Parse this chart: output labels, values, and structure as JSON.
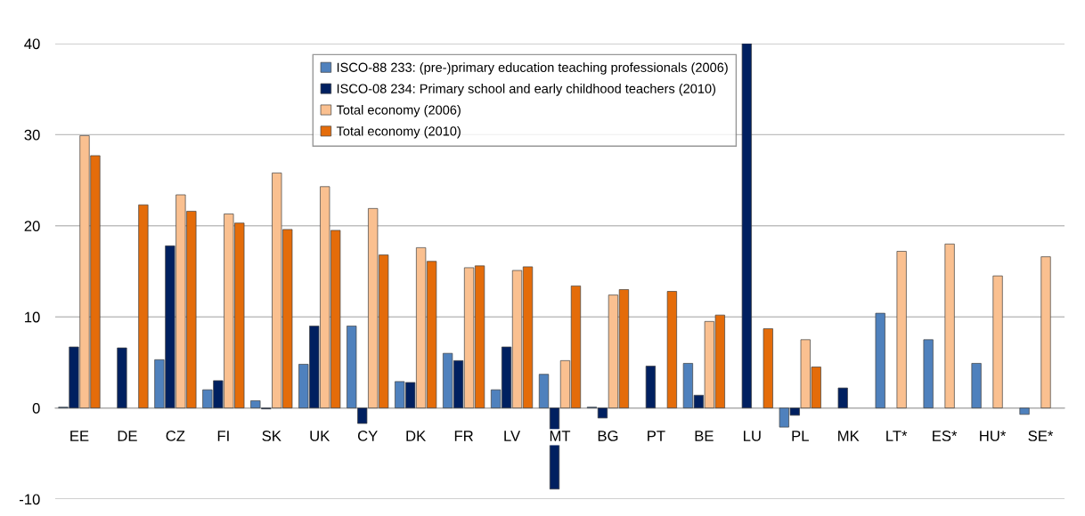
{
  "chart_data": {
    "type": "bar",
    "categories": [
      "EE",
      "DE",
      "CZ",
      "FI",
      "SK",
      "UK",
      "CY",
      "DK",
      "FR",
      "LV",
      "MT",
      "BG",
      "PT",
      "BE",
      "LU",
      "PL",
      "MK",
      "LT*",
      "ES*",
      "HU*",
      "SE*"
    ],
    "series": [
      {
        "name": "ISCO-88 233: (pre-)primary education teaching professionals (2006)",
        "color": "#4f81bd",
        "values": [
          0.1,
          null,
          5.3,
          2.0,
          0.8,
          4.8,
          9.0,
          2.9,
          6.0,
          2.0,
          3.7,
          0.1,
          null,
          4.9,
          null,
          -2.1,
          null,
          10.4,
          7.5,
          4.9,
          -0.7
        ]
      },
      {
        "name": "ISCO-08 234: Primary school and early childhood teachers (2010)",
        "color": "#002060",
        "values": [
          6.7,
          6.6,
          17.8,
          3.0,
          -0.1,
          9.0,
          -1.7,
          2.8,
          5.2,
          6.7,
          -8.9,
          -1.1,
          4.6,
          1.4,
          40,
          -0.8,
          2.2,
          null,
          null,
          null,
          null
        ]
      },
      {
        "name": "Total economy (2006)",
        "color": "#fac090",
        "values": [
          29.9,
          null,
          23.4,
          21.3,
          25.8,
          24.3,
          21.9,
          17.6,
          15.4,
          15.1,
          5.2,
          12.4,
          null,
          9.5,
          null,
          7.5,
          null,
          17.2,
          18.0,
          14.5,
          16.6
        ]
      },
      {
        "name": "Total economy (2010)",
        "color": "#e46c0a",
        "values": [
          27.7,
          22.3,
          21.6,
          20.3,
          19.6,
          19.5,
          16.8,
          16.1,
          15.6,
          15.5,
          13.4,
          13.0,
          12.8,
          10.2,
          8.7,
          4.5,
          null,
          null,
          null,
          null,
          null
        ]
      }
    ],
    "ylim": [
      -10,
      40
    ],
    "yticks": [
      -10,
      0,
      10,
      20,
      30,
      40
    ],
    "grid": "y",
    "legend": "top"
  }
}
